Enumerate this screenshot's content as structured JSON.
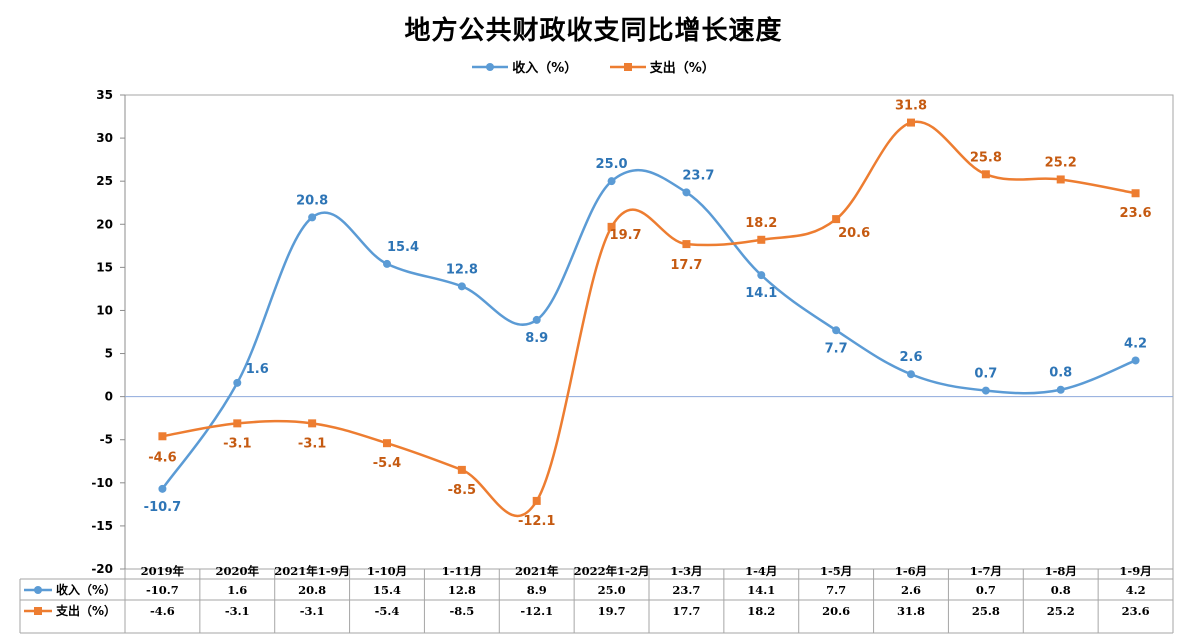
{
  "chart_data": {
    "type": "line",
    "title": "地方公共财政收支同比增长速度",
    "categories": [
      "2019年",
      "2020年",
      "2021年1-9月",
      "1-10月",
      "1-11月",
      "2021年",
      "2022年1-2月",
      "1-3月",
      "1-4月",
      "1-5月",
      "1-6月",
      "1-7月",
      "1-8月",
      "1-9月"
    ],
    "ylim": [
      -20,
      35
    ],
    "yticks": [
      -20,
      -15,
      -10,
      -5,
      0,
      5,
      10,
      15,
      20,
      25,
      30,
      35
    ],
    "legend_position": "top-center",
    "grid": false,
    "data_table": true,
    "series": [
      {
        "name": "收入（%）",
        "color": "#5b9bd5",
        "label_color": "#2e75b6",
        "marker": "circle",
        "values": [
          -10.7,
          1.6,
          20.8,
          15.4,
          12.8,
          8.9,
          25.0,
          23.7,
          14.1,
          7.7,
          2.6,
          0.7,
          0.8,
          4.2
        ]
      },
      {
        "name": "支出（%）",
        "color": "#ed7d31",
        "label_color": "#c55a11",
        "marker": "square",
        "values": [
          -4.6,
          -3.1,
          -3.1,
          -5.4,
          -8.5,
          -12.1,
          19.7,
          17.7,
          18.2,
          20.6,
          31.8,
          25.8,
          25.2,
          23.6
        ]
      }
    ]
  }
}
